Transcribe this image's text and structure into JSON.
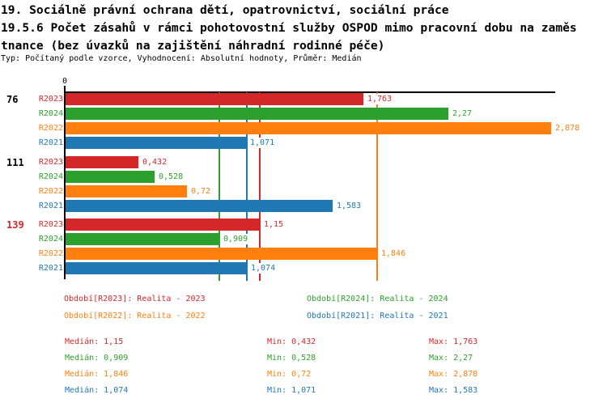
{
  "title": {
    "line1": "19. Sociálně právní ochrana dětí, opatrovnictví, sociální práce",
    "line2": "19.5.6 Počet zásahů v rámci pohotovostní služby OSPOD mimo pracovní dobu na zaměs",
    "line3": "tnance (bez úvazků na zajištění náhradní rodinné péče)",
    "subtitle": "Typ: Počítaný podle vzorce, Vyhodnocení: Absolutní hodnoty, Průměr: Medián"
  },
  "colors": {
    "R2023": "#d62728",
    "R2024": "#2ca02c",
    "R2022": "#ff7f0e",
    "R2021": "#1f77b4",
    "axis": "#000000"
  },
  "chart_data": {
    "type": "bar",
    "orientation": "horizontal",
    "title": "19.5.6 Počet zásahů v rámci pohotovostní služby OSPOD mimo pracovní dobu na zaměstnance (bez úvazků na zajištění náhradní rodinné péče)",
    "x_axis": {
      "zero_label": "0",
      "xlim": [
        0,
        2.907
      ],
      "gridlines": false
    },
    "series_order": [
      "R2023",
      "R2024",
      "R2022",
      "R2021"
    ],
    "groups": [
      {
        "label": "76",
        "label_color": "#000000",
        "bars": [
          {
            "series": "R2023",
            "value": 1.763,
            "value_label": "1,763"
          },
          {
            "series": "R2024",
            "value": 2.27,
            "value_label": "2,27"
          },
          {
            "series": "R2022",
            "value": 2.878,
            "value_label": "2,878"
          },
          {
            "series": "R2021",
            "value": 1.071,
            "value_label": "1,071"
          }
        ]
      },
      {
        "label": "111",
        "label_color": "#000000",
        "bars": [
          {
            "series": "R2023",
            "value": 0.432,
            "value_label": "0,432"
          },
          {
            "series": "R2024",
            "value": 0.528,
            "value_label": "0,528"
          },
          {
            "series": "R2022",
            "value": 0.72,
            "value_label": "0,72"
          },
          {
            "series": "R2021",
            "value": 1.583,
            "value_label": "1,583"
          }
        ]
      },
      {
        "label": "139",
        "label_color": "#d62728",
        "bars": [
          {
            "series": "R2023",
            "value": 1.15,
            "value_label": "1,15"
          },
          {
            "series": "R2024",
            "value": 0.909,
            "value_label": "0,909"
          },
          {
            "series": "R2022",
            "value": 1.846,
            "value_label": "1,846"
          },
          {
            "series": "R2021",
            "value": 1.074,
            "value_label": "1,074"
          }
        ]
      }
    ],
    "median_lines": [
      {
        "series": "R2023",
        "value": 1.15
      },
      {
        "series": "R2024",
        "value": 0.909
      },
      {
        "series": "R2022",
        "value": 1.846
      },
      {
        "series": "R2021",
        "value": 1.074
      }
    ]
  },
  "legend": {
    "items": [
      {
        "series": "R2023",
        "label": "Období[R2023]: Realita - 2023"
      },
      {
        "series": "R2024",
        "label": "Období[R2024]: Realita - 2024"
      },
      {
        "series": "R2022",
        "label": "Období[R2022]: Realita - 2022"
      },
      {
        "series": "R2021",
        "label": "Období[R2021]: Realita - 2021"
      }
    ]
  },
  "stats": {
    "col_labels": {
      "median": "Medián:",
      "min": "Min:",
      "max": "Max:"
    },
    "rows": [
      {
        "series": "R2023",
        "median": "1,15",
        "min": "0,432",
        "max": "1,763"
      },
      {
        "series": "R2024",
        "median": "0,909",
        "min": "0,528",
        "max": "2,27"
      },
      {
        "series": "R2022",
        "median": "1,846",
        "min": "0,72",
        "max": "2,878"
      },
      {
        "series": "R2021",
        "median": "1,074",
        "min": "1,071",
        "max": "1,583"
      }
    ]
  }
}
